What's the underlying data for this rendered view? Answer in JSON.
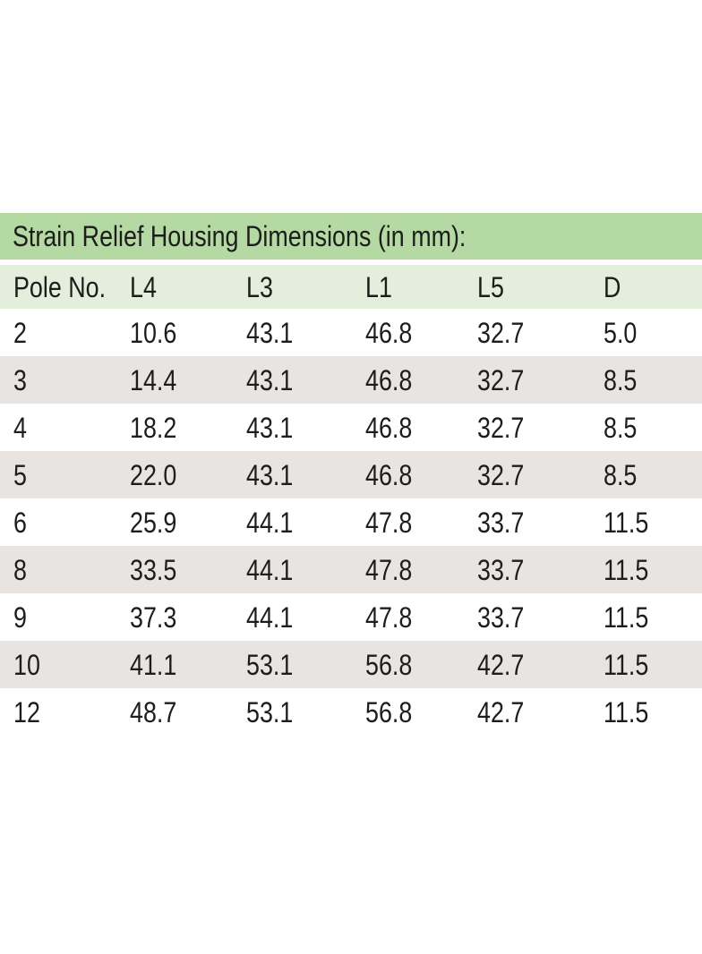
{
  "page": {
    "background": "#ffffff"
  },
  "colors": {
    "title_bar_green": "#b5d9a3",
    "header_row_green": "#e3efdc",
    "stripe_gray": "#e7e4e1",
    "text": "#1d1d1b",
    "page_background": "#ffffff"
  },
  "table": {
    "title": "Strain Relief Housing Dimensions (in mm):",
    "columns": [
      "Pole No.",
      "L4",
      "L3",
      "L1",
      "L5",
      "D"
    ],
    "rows": [
      [
        "2",
        "10.6",
        "43.1",
        "46.8",
        "32.7",
        "5.0"
      ],
      [
        "3",
        "14.4",
        "43.1",
        "46.8",
        "32.7",
        "8.5"
      ],
      [
        "4",
        "18.2",
        "43.1",
        "46.8",
        "32.7",
        "8.5"
      ],
      [
        "5",
        "22.0",
        "43.1",
        "46.8",
        "32.7",
        "8.5"
      ],
      [
        "6",
        "25.9",
        "44.1",
        "47.8",
        "33.7",
        "11.5"
      ],
      [
        "8",
        "33.5",
        "44.1",
        "47.8",
        "33.7",
        "11.5"
      ],
      [
        "9",
        "37.3",
        "44.1",
        "47.8",
        "33.7",
        "11.5"
      ],
      [
        "10",
        "41.1",
        "53.1",
        "56.8",
        "42.7",
        "11.5"
      ],
      [
        "12",
        "48.7",
        "53.1",
        "56.8",
        "42.7",
        "11.5"
      ]
    ]
  },
  "chart_data": {
    "type": "table",
    "title": "Strain Relief Housing Dimensions (in mm):",
    "columns": [
      "Pole No.",
      "L4",
      "L3",
      "L1",
      "L5",
      "D"
    ],
    "rows": [
      [
        2,
        10.6,
        43.1,
        46.8,
        32.7,
        5.0
      ],
      [
        3,
        14.4,
        43.1,
        46.8,
        32.7,
        8.5
      ],
      [
        4,
        18.2,
        43.1,
        46.8,
        32.7,
        8.5
      ],
      [
        5,
        22.0,
        43.1,
        46.8,
        32.7,
        8.5
      ],
      [
        6,
        25.9,
        44.1,
        47.8,
        33.7,
        11.5
      ],
      [
        8,
        33.5,
        44.1,
        47.8,
        33.7,
        11.5
      ],
      [
        9,
        37.3,
        44.1,
        47.8,
        33.7,
        11.5
      ],
      [
        10,
        41.1,
        53.1,
        56.8,
        42.7,
        11.5
      ],
      [
        12,
        48.7,
        53.1,
        56.8,
        42.7,
        11.5
      ]
    ]
  }
}
